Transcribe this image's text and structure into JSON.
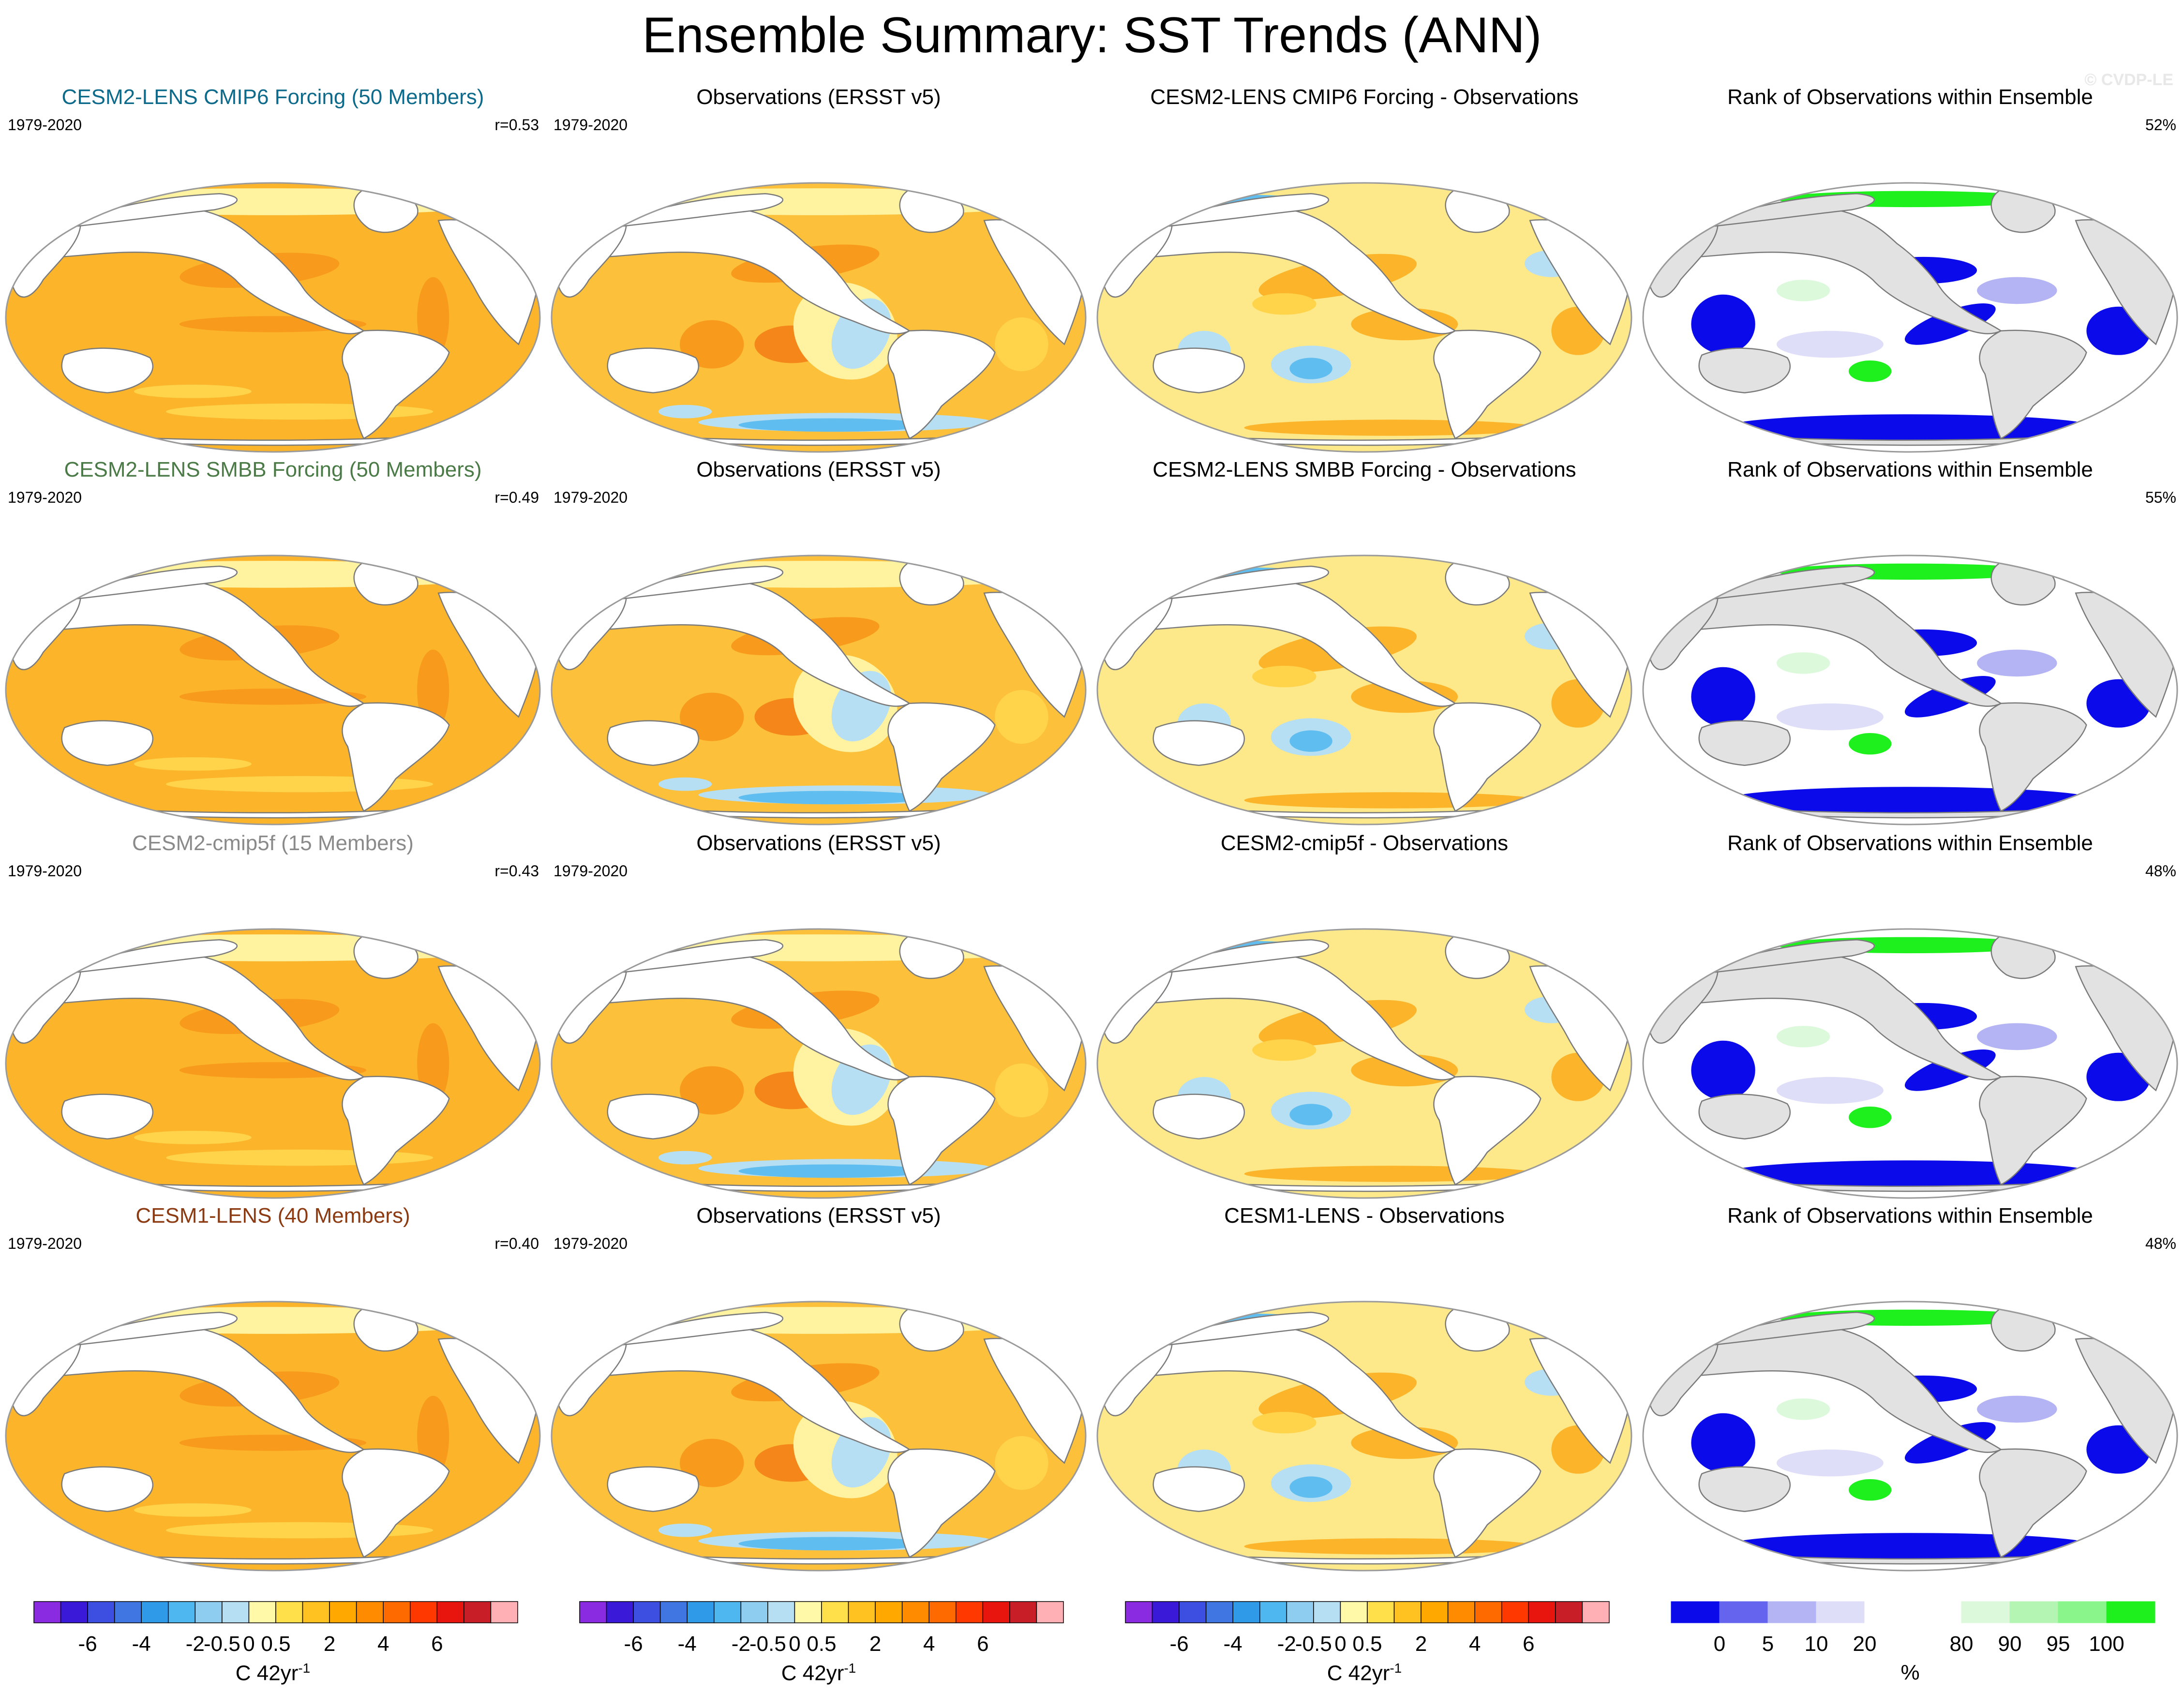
{
  "title": "Ensemble Summary: SST Trends (ANN)",
  "watermark": "© CVDP-LE",
  "rows": [
    {
      "model_title": "CESM2-LENS CMIP6 Forcing (50 Members)",
      "model_title_color": "#0e6a8a",
      "period": "1979-2020",
      "correlation": "r=0.53",
      "obs_title": "Observations (ERSST v5)",
      "obs_period": "1979-2020",
      "diff_title": "CESM2-LENS CMIP6 Forcing - Observations",
      "rank_title": "Rank of Observations within Ensemble",
      "rank_percent": "52%"
    },
    {
      "model_title": "CESM2-LENS SMBB Forcing (50 Members)",
      "model_title_color": "#4a7a45",
      "period": "1979-2020",
      "correlation": "r=0.49",
      "obs_title": "Observations (ERSST v5)",
      "obs_period": "1979-2020",
      "diff_title": "CESM2-LENS SMBB Forcing - Observations",
      "rank_title": "Rank of Observations within Ensemble",
      "rank_percent": "55%"
    },
    {
      "model_title": "CESM2-cmip5f (15 Members)",
      "model_title_color": "#8a8a8a",
      "period": "1979-2020",
      "correlation": "r=0.43",
      "obs_title": "Observations (ERSST v5)",
      "obs_period": "1979-2020",
      "diff_title": "CESM2-cmip5f - Observations",
      "rank_title": "Rank of Observations within Ensemble",
      "rank_percent": "48%"
    },
    {
      "model_title": "CESM1-LENS (40 Members)",
      "model_title_color": "#8b3a12",
      "period": "1979-2020",
      "correlation": "r=0.40",
      "obs_title": "Observations (ERSST v5)",
      "obs_period": "1979-2020",
      "diff_title": "CESM1-LENS - Observations",
      "rank_title": "Rank of Observations within Ensemble",
      "rank_percent": "48%"
    }
  ],
  "trend_colorbar": {
    "colors": [
      "#8a2be2",
      "#3a19d8",
      "#3d4fe0",
      "#3f76e2",
      "#2f9ae8",
      "#4fb7f0",
      "#8ecdf0",
      "#b6dff3",
      "#fff9a8",
      "#ffe04a",
      "#ffc220",
      "#ffa800",
      "#ff8c00",
      "#ff6a00",
      "#ff3800",
      "#e8140e",
      "#c81e28",
      "#ffb0b4"
    ],
    "tick_labels": [
      "-6",
      "-4",
      "-2",
      "-0.5",
      "0",
      "0.5",
      "2",
      "4",
      "6"
    ],
    "unit": "C 42yr",
    "unit_exponent": "-1"
  },
  "rank_colorbar": {
    "colors": [
      "#0a0aeb",
      "#6464ef",
      "#b4b4f5",
      "#dedef9",
      "#ffffff",
      "#ffffff",
      "#dcf9dc",
      "#b4f5b4",
      "#8af58a",
      "#1ef01e"
    ],
    "tick_labels": [
      "0",
      "5",
      "10",
      "20",
      "80",
      "90",
      "95",
      "100"
    ],
    "unit": "%"
  }
}
